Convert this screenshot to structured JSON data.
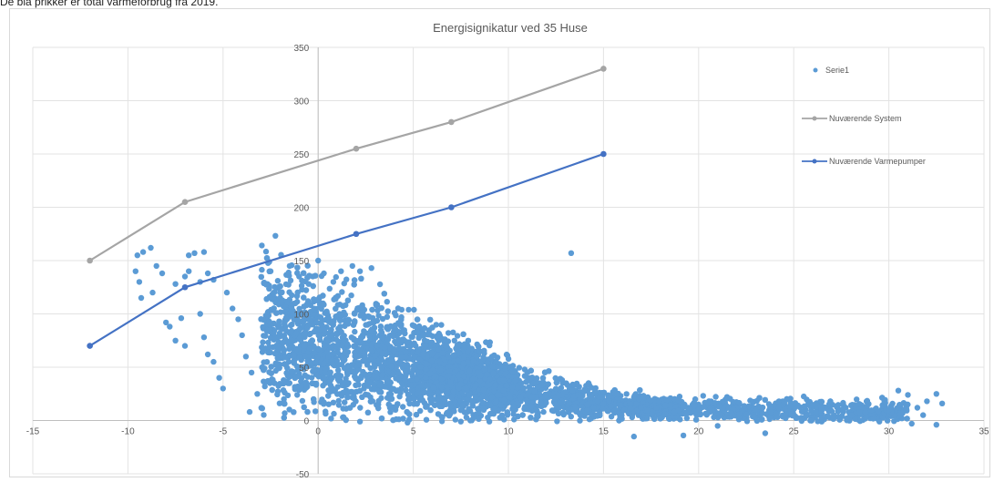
{
  "caption": "De blå prikker er total varmeforbrug fra 2019.",
  "chart_data": {
    "type": "scatter",
    "title": "Energisignikatur ved 35 Huse",
    "xlim": [
      -15,
      35
    ],
    "ylim": [
      -50,
      350
    ],
    "x_ticks": [
      -15,
      -10,
      -5,
      0,
      5,
      10,
      15,
      20,
      25,
      30,
      35
    ],
    "y_ticks": [
      -50,
      0,
      50,
      100,
      150,
      200,
      250,
      300,
      350
    ],
    "grid": true,
    "legend_position": "right",
    "series": [
      {
        "name": "Serie1",
        "kind": "scatter",
        "color": "#5b9bd5",
        "points": [
          [
            -9.5,
            155
          ],
          [
            -9.2,
            158
          ],
          [
            -8.8,
            162
          ],
          [
            -9.6,
            140
          ],
          [
            -9.4,
            130
          ],
          [
            -8.5,
            145
          ],
          [
            -8.2,
            138
          ],
          [
            -9.3,
            115
          ],
          [
            -8.7,
            120
          ],
          [
            -8,
            92
          ],
          [
            -7.8,
            88
          ],
          [
            -7.5,
            75
          ],
          [
            -7.2,
            96
          ],
          [
            -7,
            70
          ],
          [
            -7.5,
            128
          ],
          [
            -7,
            135
          ],
          [
            -6.8,
            155
          ],
          [
            -6.5,
            157
          ],
          [
            -6.8,
            140
          ],
          [
            -6.2,
            130
          ],
          [
            -6,
            158
          ],
          [
            -5.8,
            138
          ],
          [
            -5.5,
            132
          ],
          [
            -6.2,
            100
          ],
          [
            -6,
            78
          ],
          [
            -5.8,
            62
          ],
          [
            -5.5,
            55
          ],
          [
            -5.2,
            40
          ],
          [
            -5,
            30
          ],
          [
            -4.8,
            120
          ],
          [
            -4.5,
            105
          ],
          [
            -4.2,
            95
          ],
          [
            -4,
            80
          ],
          [
            -3.8,
            60
          ],
          [
            -3.5,
            45
          ],
          [
            -3.2,
            25
          ],
          [
            -3.6,
            8
          ],
          [
            -2.8,
            32
          ],
          [
            -2.5,
            140
          ],
          [
            -2,
            120
          ],
          [
            -1.5,
            145
          ],
          [
            -1,
            135
          ],
          [
            -0.5,
            128
          ],
          [
            0,
            150
          ],
          [
            -1.8,
            20
          ],
          [
            -1.2,
            40
          ],
          [
            0.3,
            138
          ],
          [
            0.8,
            130
          ],
          [
            1.2,
            140
          ],
          [
            1.8,
            145
          ],
          [
            2.2,
            140
          ],
          [
            2.8,
            143
          ],
          [
            1.3,
            3
          ],
          [
            2.2,
            -1
          ],
          [
            4.7,
            -2
          ],
          [
            7.5,
            -1
          ],
          [
            8,
            0
          ],
          [
            9,
            -1
          ],
          [
            13.3,
            157
          ],
          [
            16.6,
            -15
          ],
          [
            19.2,
            -14
          ],
          [
            21,
            -5
          ],
          [
            23.5,
            -12
          ],
          [
            29.8,
            18
          ],
          [
            30,
            10
          ],
          [
            30.5,
            28
          ],
          [
            31,
            24
          ],
          [
            31.5,
            12
          ],
          [
            31.8,
            5
          ],
          [
            32,
            18
          ],
          [
            32.5,
            25
          ],
          [
            32.8,
            16
          ],
          [
            31.2,
            -3
          ],
          [
            32.5,
            -4
          ],
          [
            29.5,
            -1
          ]
        ],
        "bulk_trend": [
          [
            -5,
            90
          ],
          [
            -2.5,
            82
          ],
          [
            0,
            72
          ],
          [
            2.5,
            62
          ],
          [
            5,
            52
          ],
          [
            7.5,
            40
          ],
          [
            10,
            30
          ],
          [
            12.5,
            22
          ],
          [
            15,
            16
          ],
          [
            17.5,
            12
          ],
          [
            20,
            11
          ],
          [
            22.5,
            10
          ],
          [
            25,
            10
          ],
          [
            27.5,
            9
          ],
          [
            30,
            9
          ]
        ]
      },
      {
        "name": "Nuværende System",
        "kind": "line",
        "color": "#a5a5a5",
        "points": [
          [
            -12,
            150
          ],
          [
            -7,
            205
          ],
          [
            2,
            255
          ],
          [
            7,
            280
          ],
          [
            15,
            330
          ]
        ]
      },
      {
        "name": "Nuværende Varmepumper",
        "kind": "line",
        "color": "#4472c4",
        "points": [
          [
            -12,
            70
          ],
          [
            -7,
            125
          ],
          [
            2,
            175
          ],
          [
            7,
            200
          ],
          [
            15,
            250
          ]
        ]
      }
    ]
  }
}
